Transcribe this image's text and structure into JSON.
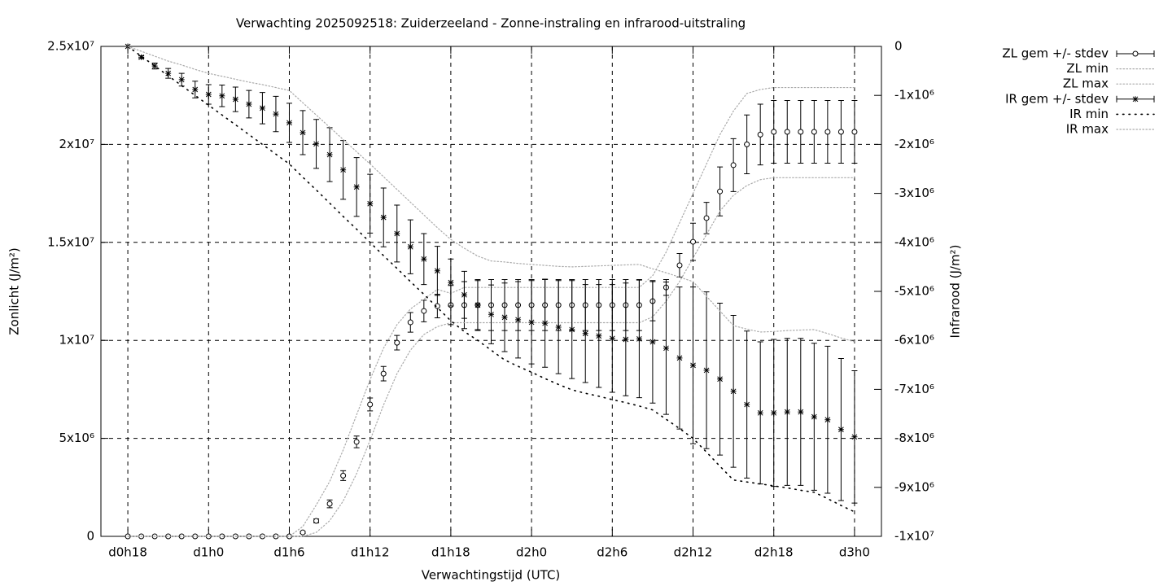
{
  "chart_data": {
    "type": "errorbar-line",
    "title": "Verwachting 2025092518: Zuiderzeeland - Zonne-instraling en infrarood-uitstraling",
    "x_label": "Verwachtingstijd (UTC)",
    "y_label": "Zonlicht (J/m²)",
    "y2_label": "Infrarood (J/m²)",
    "xlim": [
      16,
      74
    ],
    "xticks": [
      {
        "value": 18,
        "label": "d0h18"
      },
      {
        "value": 24,
        "label": "d1h0"
      },
      {
        "value": 30,
        "label": "d1h6"
      },
      {
        "value": 36,
        "label": "d1h12"
      },
      {
        "value": 42,
        "label": "d1h18"
      },
      {
        "value": 48,
        "label": "d2h0"
      },
      {
        "value": 54,
        "label": "d2h6"
      },
      {
        "value": 60,
        "label": "d2h12"
      },
      {
        "value": 66,
        "label": "d2h18"
      },
      {
        "value": 72,
        "label": "d3h0"
      }
    ],
    "ylim": [
      0,
      25000000
    ],
    "yticks": [
      0,
      {
        "value": 5000000,
        "label": "5x10⁶"
      },
      {
        "value": 10000000,
        "label": "1x10⁷"
      },
      {
        "value": 15000000,
        "label": "1.5x10⁷"
      },
      {
        "value": 20000000,
        "label": "2x10⁷"
      },
      {
        "value": 25000000,
        "label": "2.5x10⁷"
      }
    ],
    "y2lim": [
      -10000000,
      0
    ],
    "y2ticks": [
      {
        "value": -10000000,
        "label": "-1x10⁷"
      },
      {
        "value": -9000000,
        "label": "-9x10⁶"
      },
      {
        "value": -8000000,
        "label": "-8x10⁶"
      },
      {
        "value": -7000000,
        "label": "-7x10⁶"
      },
      {
        "value": -6000000,
        "label": "-6x10⁶"
      },
      {
        "value": -5000000,
        "label": "-5x10⁶"
      },
      {
        "value": -4000000,
        "label": "-4x10⁶"
      },
      {
        "value": -3000000,
        "label": "-3x10⁶"
      },
      {
        "value": -2000000,
        "label": "-2x10⁶"
      },
      {
        "value": -1000000,
        "label": "-1x10⁶"
      },
      0
    ],
    "grid": true,
    "legend": "outside-top-right",
    "x": [
      18,
      19,
      20,
      21,
      22,
      23,
      24,
      25,
      26,
      27,
      28,
      29,
      30,
      31,
      32,
      33,
      34,
      35,
      36,
      37,
      38,
      39,
      40,
      41,
      42,
      43,
      44,
      45,
      46,
      47,
      48,
      49,
      50,
      51,
      52,
      53,
      54,
      55,
      56,
      57,
      58,
      59,
      60,
      61,
      62,
      63,
      64,
      65,
      66,
      67,
      68,
      69,
      70,
      71,
      72
    ],
    "series": [
      {
        "name": "ZL gem +/- stdev",
        "color": "#000000",
        "marker": "circle",
        "axis": "y",
        "values": [
          0,
          0,
          0,
          0,
          0,
          0,
          0,
          0,
          0,
          0,
          0,
          0,
          0,
          200000.0,
          790000.0,
          1660000.0,
          3100000.0,
          4820000.0,
          6730000.0,
          8300000.0,
          9880000.0,
          10920000.0,
          11500000.0,
          11750000.0,
          11800000.0,
          11800000.0,
          11800000.0,
          11800000.0,
          11800000.0,
          11800000.0,
          11800000.0,
          11800000.0,
          11800000.0,
          11800000.0,
          11800000.0,
          11800000.0,
          11800000.0,
          11800000.0,
          11800000.0,
          12000000.0,
          12700000.0,
          13830000.0,
          15030000.0,
          16240000.0,
          17600000.0,
          18940000.0,
          20000000.0,
          20500000.0,
          20640000.0,
          20640000.0,
          20640000.0,
          20640000.0,
          20640000.0,
          20640000.0,
          20640000.0
        ],
        "errors": [
          0,
          0,
          0,
          0,
          0,
          0,
          0,
          0,
          0,
          0,
          0,
          0,
          0,
          50000.0,
          100000.0,
          200000.0,
          250000.0,
          300000.0,
          330000.0,
          370000.0,
          370000.0,
          500000.0,
          550000.0,
          600000.0,
          1000000.0,
          1200000.0,
          1300000.0,
          1300000.0,
          1300000.0,
          1300000.0,
          1300000.0,
          1300000.0,
          1300000.0,
          1300000.0,
          1300000.0,
          1300000.0,
          1300000.0,
          1300000.0,
          1300000.0,
          1000000.0,
          400000.0,
          600000.0,
          950000.0,
          800000.0,
          1250000.0,
          1350000.0,
          1500000.0,
          1550000.0,
          1600000.0,
          1600000.0,
          1600000.0,
          1600000.0,
          1600000.0,
          1600000.0,
          1600000.0
        ]
      },
      {
        "name": "ZL min",
        "color": "#aaaaaa",
        "axis": "y",
        "values": [
          0,
          0,
          0,
          0,
          0,
          0,
          0,
          0,
          0,
          0,
          0,
          0,
          0,
          0,
          200000.0,
          800000.0,
          1800000.0,
          3200000.0,
          4900000.0,
          6700000.0,
          8300000.0,
          9500000.0,
          10300000.0,
          10700000.0,
          10900000.0,
          10900000.0,
          10900000.0,
          10900000.0,
          10900000.0,
          10900000.0,
          10900000.0,
          10900000.0,
          10900000.0,
          10900000.0,
          10900000.0,
          10900000.0,
          10900000.0,
          10900000.0,
          10900000.0,
          11200000.0,
          12000000.0,
          13000000.0,
          14200000.0,
          15400000.0,
          16600000.0,
          17400000.0,
          17900000.0,
          18200000.0,
          18300000.0,
          18300000.0,
          18300000.0,
          18300000.0,
          18300000.0,
          18300000.0,
          18300000.0
        ]
      },
      {
        "name": "ZL max",
        "color": "#aaaaaa",
        "axis": "y",
        "values": [
          0,
          0,
          0,
          0,
          0,
          0,
          0,
          0,
          0,
          0,
          0,
          0,
          0,
          500000.0,
          1600000.0,
          2800000.0,
          4400000.0,
          6200000.0,
          8000000.0,
          9600000.0,
          10800000.0,
          11600000.0,
          12100000.0,
          12600000.0,
          12400000.0,
          12700000.0,
          12700000.0,
          12700000.0,
          12700000.0,
          12700000.0,
          12700000.0,
          12700000.0,
          12700000.0,
          12700000.0,
          12700000.0,
          12700000.0,
          12700000.0,
          12700000.0,
          12700000.0,
          13300000.0,
          14500000.0,
          16000000.0,
          17500000.0,
          19000000.0,
          20500000.0,
          21700000.0,
          22600000.0,
          22800000.0,
          22900000.0,
          22900000.0,
          22900000.0,
          22900000.0,
          22900000.0,
          22900000.0,
          22900000.0
        ]
      },
      {
        "name": "IR gem +/- stdev",
        "color": "#000000",
        "marker": "star",
        "axis": "y2",
        "values": [
          0,
          -220000.0,
          -400000.0,
          -550000.0,
          -680000.0,
          -880000.0,
          -980000.0,
          -1010000.0,
          -1080000.0,
          -1180000.0,
          -1260000.0,
          -1380000.0,
          -1560000.0,
          -1760000.0,
          -1990000.0,
          -2210000.0,
          -2520000.0,
          -2870000.0,
          -3210000.0,
          -3490000.0,
          -3820000.0,
          -4090000.0,
          -4340000.0,
          -4580000.0,
          -4820000.0,
          -5070000.0,
          -5280000.0,
          -5470000.0,
          -5530000.0,
          -5580000.0,
          -5630000.0,
          -5650000.0,
          -5730000.0,
          -5780000.0,
          -5860000.0,
          -5910000.0,
          -5960000.0,
          -5980000.0,
          -5970000.0,
          -6030000.0,
          -6160000.0,
          -6360000.0,
          -6510000.0,
          -6610000.0,
          -6790000.0,
          -7040000.0,
          -7310000.0,
          -7480000.0,
          -7480000.0,
          -7460000.0,
          -7460000.0,
          -7560000.0,
          -7620000.0,
          -7820000.0,
          -7970000.0
        ],
        "errors": [
          0,
          30000.0,
          60000.0,
          100000.0,
          130000.0,
          170000.0,
          200000.0,
          220000.0,
          250000.0,
          280000.0,
          320000.0,
          360000.0,
          400000.0,
          450000.0,
          500000.0,
          550000.0,
          600000.0,
          600000.0,
          600000.0,
          600000.0,
          580000.0,
          550000.0,
          520000.0,
          500000.0,
          480000.0,
          480000.0,
          500000.0,
          600000.0,
          700000.0,
          780000.0,
          850000.0,
          900000.0,
          950000.0,
          1000000.0,
          1000000.0,
          1050000.0,
          1100000.0,
          1150000.0,
          1200000.0,
          1250000.0,
          1350000.0,
          1450000.0,
          1600000.0,
          1600000.0,
          1550000.0,
          1550000.0,
          1500000.0,
          1450000.0,
          1500000.0,
          1500000.0,
          1500000.0,
          1500000.0,
          1500000.0,
          1450000.0,
          1350000.0
        ]
      },
      {
        "name": "IR min",
        "color": "#000000",
        "axis": "y2",
        "values": [
          0,
          -200000.0,
          -400000.0,
          -600000.0,
          -800000.0,
          -1000000.0,
          -1200000.0,
          -1400000.0,
          -1600000.0,
          -1800000.0,
          -2000000.0,
          -2200000.0,
          -2400000.0,
          -2670000.0,
          -2930000.0,
          -3200000.0,
          -3470000.0,
          -3730000.0,
          -4000000.0,
          -4270000.0,
          -4530000.0,
          -4800000.0,
          -5060000.0,
          -5330000.0,
          -5600000.0,
          -5820000.0,
          -6000000.0,
          -6200000.0,
          -6400000.0,
          -6530000.0,
          -6650000.0,
          -6780000.0,
          -6900000.0,
          -7010000.0,
          -7080000.0,
          -7140000.0,
          -7210000.0,
          -7270000.0,
          -7340000.0,
          -7420000.0,
          -7610000.0,
          -7800000.0,
          -8000000.0,
          -8280000.0,
          -8570000.0,
          -8850000.0,
          -8890000.0,
          -8930000.0,
          -8970000.0,
          -9010000.0,
          -9060000.0,
          -9100000.0,
          -9230000.0,
          -9370000.0,
          -9500000.0
        ]
      },
      {
        "name": "IR max",
        "color": "#aaaaaa",
        "axis": "y2",
        "values": [
          0,
          -100000.0,
          -200000.0,
          -300000.0,
          -380000.0,
          -470000.0,
          -550000.0,
          -610000.0,
          -670000.0,
          -730000.0,
          -780000.0,
          -840000.0,
          -900000.0,
          -1150000.0,
          -1400000.0,
          -1650000.0,
          -1900000.0,
          -2150000.0,
          -2400000.0,
          -2660000.0,
          -2920000.0,
          -3180000.0,
          -3440000.0,
          -3700000.0,
          -3940000.0,
          -4120000.0,
          -4280000.0,
          -4380000.0,
          -4400000.0,
          -4430000.0,
          -4450000.0,
          -4470000.0,
          -4490000.0,
          -4500000.0,
          -4490000.0,
          -4480000.0,
          -4470000.0,
          -4460000.0,
          -4450000.0,
          -4540000.0,
          -4620000.0,
          -4710000.0,
          -4800000.0,
          -5100000.0,
          -5400000.0,
          -5700000.0,
          -5770000.0,
          -5830000.0,
          -5820000.0,
          -5800000.0,
          -5790000.0,
          -5780000.0,
          -5860000.0,
          -5950000.0,
          -6030000.0
        ]
      }
    ]
  }
}
